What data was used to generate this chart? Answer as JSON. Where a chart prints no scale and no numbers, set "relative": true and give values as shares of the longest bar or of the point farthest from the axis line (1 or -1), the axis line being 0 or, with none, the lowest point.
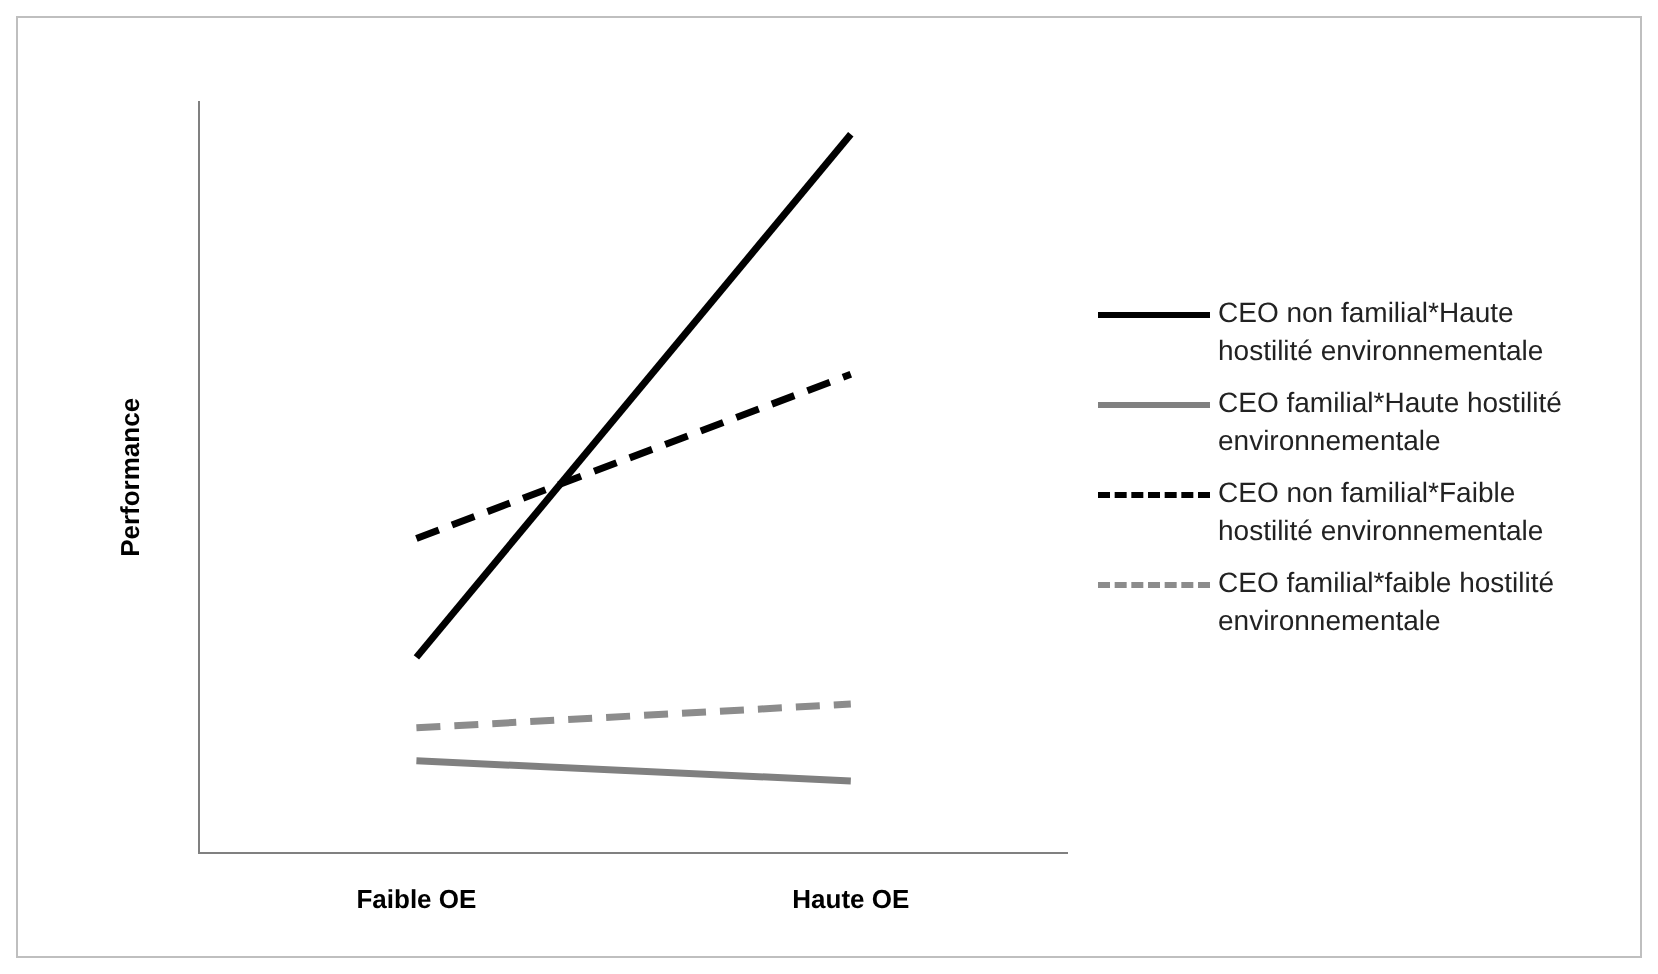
{
  "chart_data": {
    "type": "line",
    "relative": true,
    "ylabel": "Performance",
    "categories": [
      "Faible OE",
      "Haute OE"
    ],
    "legend": "right",
    "marker": "none",
    "grid": false,
    "series": [
      {
        "name": "CEO non familial*Haute hostilité environnementale",
        "color": "#000000",
        "line_style": "solid",
        "values": [
          0.272,
          1
        ]
      },
      {
        "name": "CEO familial*Haute hostilité environnementale",
        "color": "#808080",
        "line_style": "solid",
        "values": [
          0.128,
          0.1
        ]
      },
      {
        "name": "CEO non familial*Faible hostilité environnementale",
        "color": "#000000",
        "line_style": "dashed",
        "values": [
          0.4375,
          0.666
        ]
      },
      {
        "name": "CEO familial*faible hostilité environnementale",
        "color": "#8c8c8c",
        "line_style": "dashed",
        "values": [
          0.174,
          0.207
        ]
      }
    ]
  }
}
